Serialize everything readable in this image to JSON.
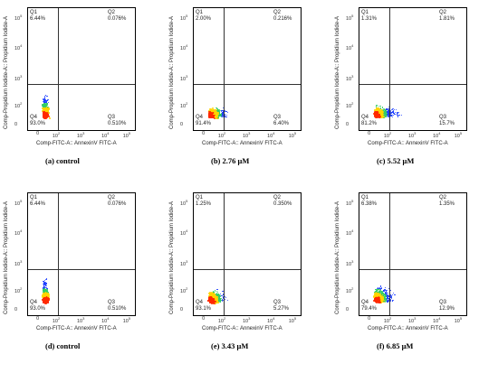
{
  "chart_data": [
    {
      "type": "scatter",
      "caption": "(a)  control",
      "xlabel": "Comp-FITC-A:: AnnexinV FITC-A",
      "ylabel": "Comp-Propidium Iodide-A:: Propidium Iodide-A",
      "quadrants": {
        "Q1": "6.44%",
        "Q2": "0.076%",
        "Q3": "0.510%",
        "Q4": "93.0%"
      }
    },
    {
      "type": "scatter",
      "caption": "(b) 2.76 μM",
      "xlabel": "Comp-FITC-A:: AnnexinV FITC-A",
      "ylabel": "Comp-Propidium Iodide-A:: Propidium Iodide-A",
      "quadrants": {
        "Q1": "2.00%",
        "Q2": "0.216%",
        "Q3": "6.40%",
        "Q4": "91.4%"
      }
    },
    {
      "type": "scatter",
      "caption": "(c) 5.52 μM",
      "xlabel": "Comp-FITC-A:: AnnexinV FITC-A",
      "ylabel": "Comp-Propidium Iodide-A:: Propidium Iodide-A",
      "quadrants": {
        "Q1": "1.31%",
        "Q2": "1.81%",
        "Q3": "15.7%",
        "Q4": "81.2%"
      }
    },
    {
      "type": "scatter",
      "caption": "(d)  control",
      "xlabel": "Comp-FITC-A:: AnnexinV FITC-A",
      "ylabel": "Comp-Propidium Iodide-A:: Propidium Iodide-A",
      "quadrants": {
        "Q1": "6.44%",
        "Q2": "0.076%",
        "Q3": "0.510%",
        "Q4": "93.0%"
      }
    },
    {
      "type": "scatter",
      "caption": "(e) 3.43  μM",
      "xlabel": "Comp-FITC-A:: AnnexinV FITC-A",
      "ylabel": "Comp-Propidium Iodide-A:: Propidium Iodide-A",
      "quadrants": {
        "Q1": "1.25%",
        "Q2": "0.350%",
        "Q3": "5.27%",
        "Q4": "93.1%"
      }
    },
    {
      "type": "scatter",
      "caption": "(f) 6.85  μM",
      "xlabel": "Comp-FITC-A:: AnnexinV FITC-A",
      "ylabel": "Comp-Propidium Iodide-A:: Propidium Iodide-A",
      "quadrants": {
        "Q1": "6.38%",
        "Q2": "1.35%",
        "Q3": "12.9%",
        "Q4": "79.4%"
      }
    }
  ],
  "axis_ticks": {
    "x": [
      "0",
      "10^2",
      "10^3",
      "10^4",
      "10^5"
    ],
    "y": [
      "0",
      "10^2",
      "10^3",
      "10^4",
      "10^5"
    ]
  },
  "colors": {
    "dense": "#ff2a00",
    "mid": "#ffd400",
    "mid2": "#33cc66",
    "sparse": "#1a3cff",
    "border": "#000000"
  }
}
